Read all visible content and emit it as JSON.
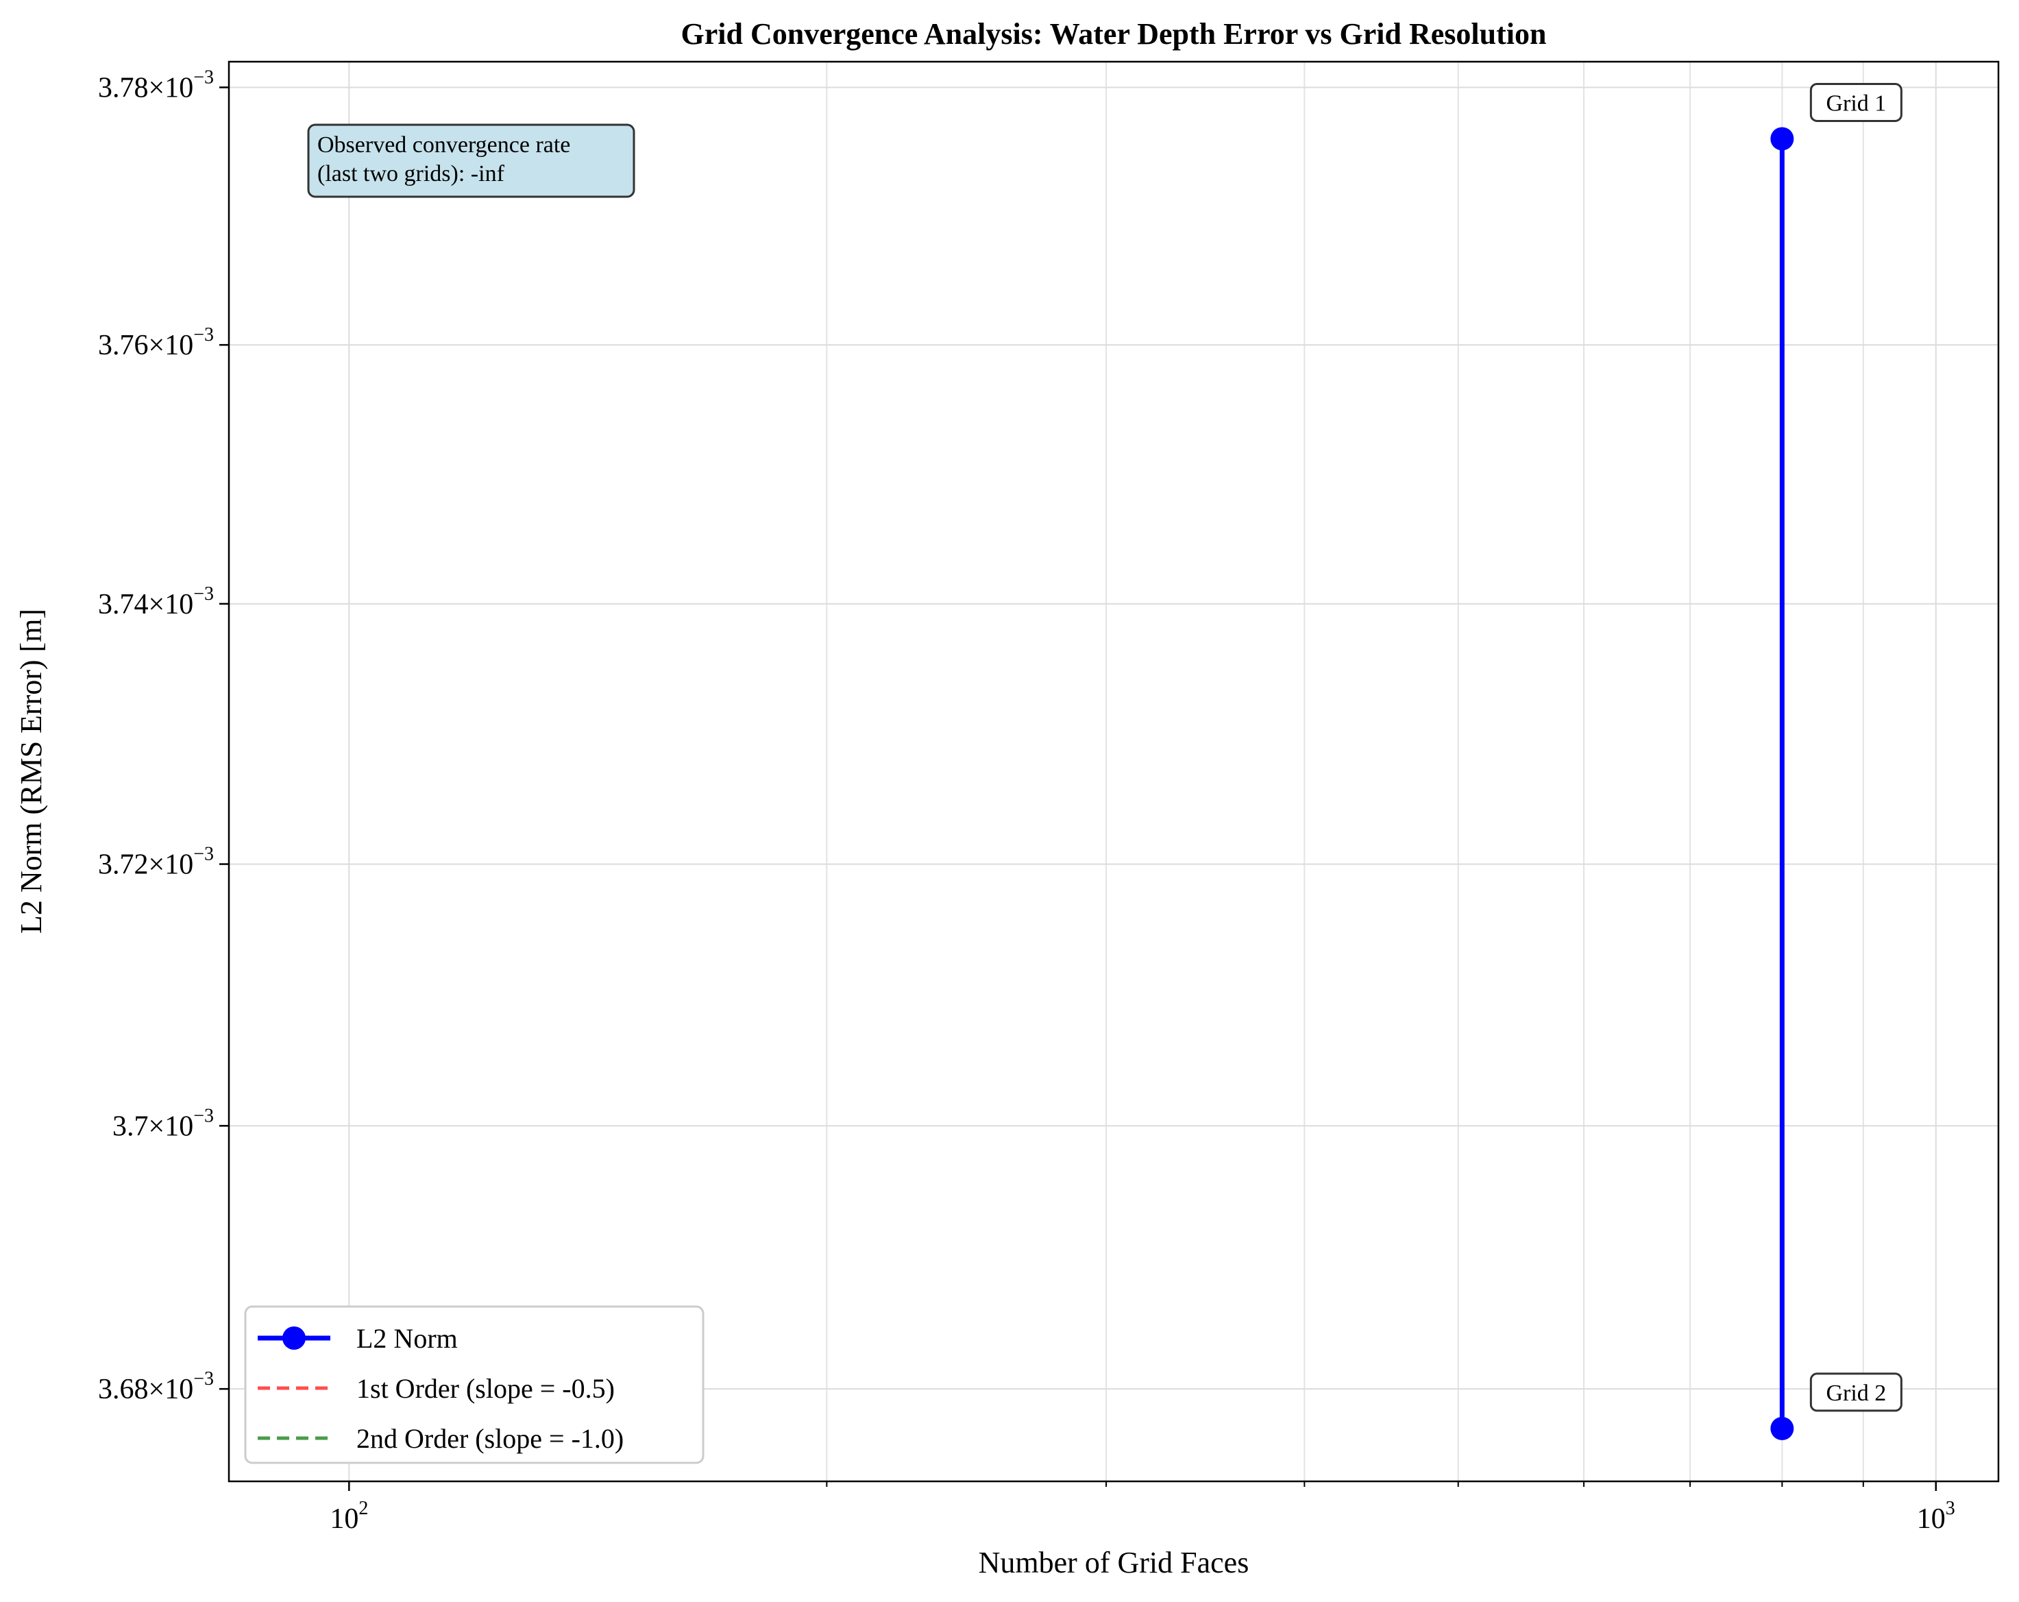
{
  "chart_data": {
    "type": "line",
    "title": "Grid Convergence Analysis: Water Depth Error vs Grid Resolution",
    "xlabel": "Number of Grid Faces",
    "ylabel": "L2 Norm (RMS Error) [m]",
    "x_scale": "log",
    "y_scale": "log",
    "xlim": [
      84,
      1095
    ],
    "ylim": [
      0.003673,
      0.003782
    ],
    "grid": true,
    "x_ticks": [
      {
        "value": 100,
        "base": "10",
        "exp": "2"
      },
      {
        "value": 1000,
        "base": "10",
        "exp": "3"
      }
    ],
    "x_minor_ticks": [
      200,
      300,
      400,
      500,
      600,
      700,
      800,
      900
    ],
    "y_ticks": [
      {
        "value": 0.00368,
        "mantissa": "3.68",
        "exp": "−3"
      },
      {
        "value": 0.0037,
        "mantissa": "3.7",
        "exp": "−3"
      },
      {
        "value": 0.00372,
        "mantissa": "3.72",
        "exp": "−3"
      },
      {
        "value": 0.00374,
        "mantissa": "3.74",
        "exp": "−3"
      },
      {
        "value": 0.00376,
        "mantissa": "3.76",
        "exp": "−3"
      },
      {
        "value": 0.00378,
        "mantissa": "3.78",
        "exp": "−3"
      }
    ],
    "series": [
      {
        "name": "L2 Norm",
        "color": "#0000ff",
        "style": "solid-marker",
        "points": [
          {
            "x": 800,
            "y": 0.003776,
            "label": "Grid 1"
          },
          {
            "x": 800,
            "y": 0.003677,
            "label": "Grid 2"
          }
        ]
      },
      {
        "name": "1st Order (slope = -0.5)",
        "color": "#ff4d4d",
        "style": "dashed",
        "points": []
      },
      {
        "name": "2nd Order (slope = -1.0)",
        "color": "#4a9c4a",
        "style": "dashed",
        "points": []
      }
    ],
    "annotation": {
      "line1": "Observed convergence rate",
      "line2": "(last two grids): -inf",
      "bg": "#c6e2ec"
    },
    "legend_position": "lower-left"
  }
}
